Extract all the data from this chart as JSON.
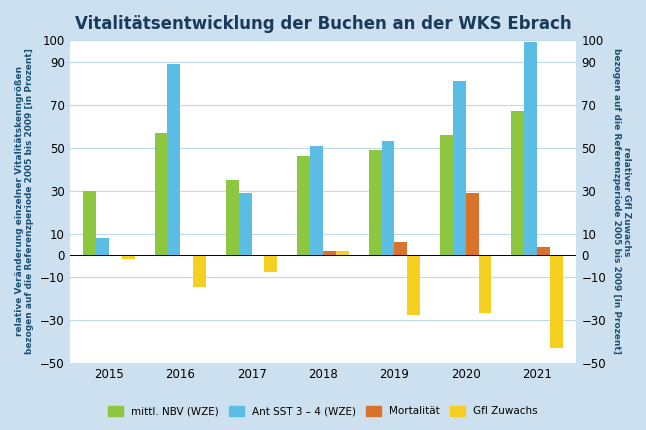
{
  "title": "Vitalitätsentwicklung der Buchen an der WKS Ebrach",
  "years": [
    2015,
    2016,
    2017,
    2018,
    2019,
    2020,
    2021
  ],
  "mittl_NBV": [
    30,
    57,
    35,
    46,
    49,
    56,
    67
  ],
  "ant_SST": [
    8,
    89,
    29,
    51,
    53,
    81,
    99
  ],
  "mortalitaet": [
    0,
    0,
    0,
    2,
    6,
    29,
    4
  ],
  "gfl_zuwachs": [
    -2,
    -15,
    -8,
    2,
    -28,
    -27,
    -43
  ],
  "color_NBV": "#8dc63f",
  "color_SST": "#5bbde4",
  "color_mort": "#d9722a",
  "color_gfl": "#f5d020",
  "ylabel_left_line1": "relative Veränderung einzelner Vitalitätskenngrößen",
  "ylabel_left_line2": "bezogen auf die Referenzperiode 2005 bis 2009 [in Prozent]",
  "ylabel_right_line1": "relativer Gfl Zuwachs",
  "ylabel_right_line2": "bezogen auf die Referenzperiode 2005 bis 2009 [in Prozent]",
  "ylim": [
    -50,
    100
  ],
  "yticks": [
    -50,
    -30,
    -10,
    0,
    10,
    30,
    50,
    70,
    90,
    100
  ],
  "outer_bg": "#cde0f0",
  "plot_bg": "#ffffff",
  "legend_labels": [
    "mittl. NBV (WZE)",
    "Ant SST 3 – 4 (WZE)",
    "Mortalität",
    "Gfl Zuwachs"
  ],
  "bar_width": 0.18,
  "title_fontsize": 12,
  "axis_label_color": "#1a5276",
  "title_color": "#1a3a5c"
}
